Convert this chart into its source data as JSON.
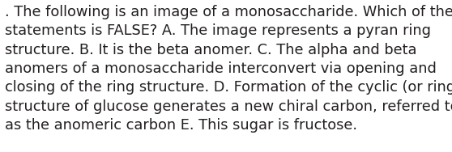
{
  "lines": [
    ". The following is an image of a monosaccharide. Which of the",
    "statements is FALSE? A. The image represents a pyran ring",
    "structure. B. It is the beta anomer. C. The alpha and beta",
    "anomers of a monosaccharide interconvert via opening and",
    "closing of the ring structure. D. Formation of the cyclic (or ring)",
    "structure of glucose generates a new chiral carbon, referred to",
    "as the anomeric carbon E. This sugar is fructose."
  ],
  "background_color": "#ffffff",
  "text_color": "#231f20",
  "font_size": 12.8,
  "fig_width": 5.58,
  "fig_height": 1.88,
  "dpi": 100
}
